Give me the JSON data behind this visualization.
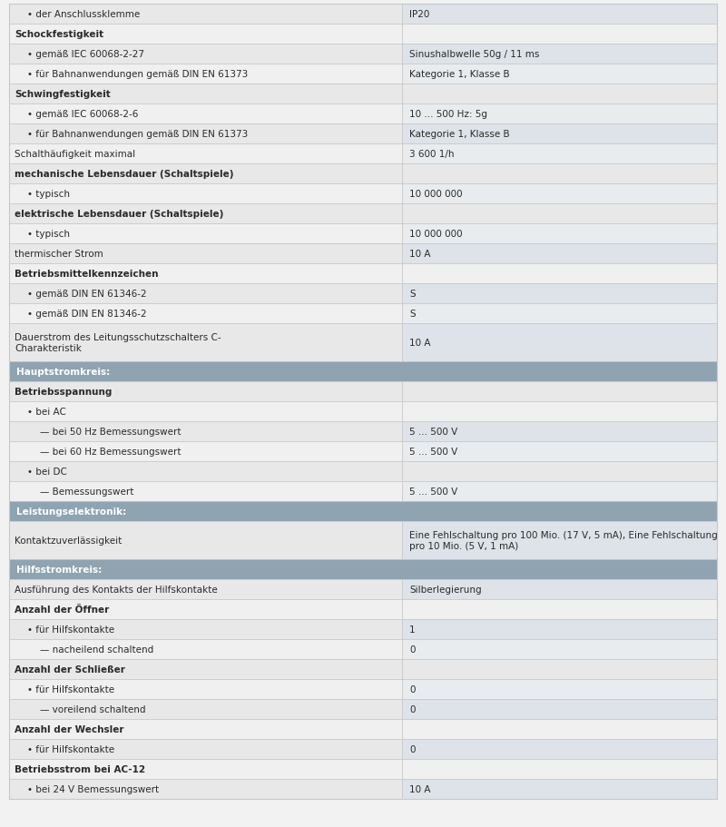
{
  "bg_color": "#f2f2f2",
  "header_color": "#8fa3b1",
  "header_text_color": "#ffffff",
  "row_bg_even": "#e8e8e8",
  "row_bg_odd": "#f0f0f0",
  "right_bg_even": "#dde3e8",
  "right_bg_odd": "#e8ecef",
  "text_color": "#2a2a2a",
  "border_color": "#c8c8c8",
  "col_split": 0.555,
  "font_size": 7.5,
  "rows": [
    {
      "type": "data",
      "left": "• der Anschlussklemme",
      "right": "IP20",
      "indent": 1
    },
    {
      "type": "section",
      "left": "Schockfestigkeit",
      "right": "",
      "indent": 0
    },
    {
      "type": "data",
      "left": "• gemäß IEC 60068-2-27",
      "right": "Sinushalbwelle 50g / 11 ms",
      "indent": 1
    },
    {
      "type": "data",
      "left": "• für Bahnanwendungen gemäß DIN EN 61373",
      "right": "Kategorie 1, Klasse B",
      "indent": 1
    },
    {
      "type": "section",
      "left": "Schwingfestigkeit",
      "right": "",
      "indent": 0
    },
    {
      "type": "data",
      "left": "• gemäß IEC 60068-2-6",
      "right": "10 ... 500 Hz: 5g",
      "indent": 1
    },
    {
      "type": "data",
      "left": "• für Bahnanwendungen gemäß DIN EN 61373",
      "right": "Kategorie 1, Klasse B",
      "indent": 1
    },
    {
      "type": "data",
      "left": "Schalthäufigkeit maximal",
      "right": "3 600 1/h",
      "indent": 0
    },
    {
      "type": "section",
      "left": "mechanische Lebensdauer (Schaltspiele)",
      "right": "",
      "indent": 0
    },
    {
      "type": "data",
      "left": "• typisch",
      "right": "10 000 000",
      "indent": 1
    },
    {
      "type": "section",
      "left": "elektrische Lebensdauer (Schaltspiele)",
      "right": "",
      "indent": 0
    },
    {
      "type": "data",
      "left": "• typisch",
      "right": "10 000 000",
      "indent": 1
    },
    {
      "type": "data",
      "left": "thermischer Strom",
      "right": "10 A",
      "indent": 0
    },
    {
      "type": "section",
      "left": "Betriebsmittelkennzeichen",
      "right": "",
      "indent": 0
    },
    {
      "type": "data",
      "left": "• gemäß DIN EN 61346-2",
      "right": "S",
      "indent": 1
    },
    {
      "type": "data",
      "left": "• gemäß DIN EN 81346-2",
      "right": "S",
      "indent": 1
    },
    {
      "type": "data2",
      "left": "Dauerstrom des Leitungsschutzschalters C-\nCharakteristik",
      "right": "10 A",
      "indent": 0
    },
    {
      "type": "header",
      "left": "Hauptstromkreis:",
      "right": "",
      "indent": 0
    },
    {
      "type": "section",
      "left": "Betriebsspannung",
      "right": "",
      "indent": 0
    },
    {
      "type": "data",
      "left": "• bei AC",
      "right": "",
      "indent": 1
    },
    {
      "type": "data",
      "left": "— bei 50 Hz Bemessungswert",
      "right": "5 ... 500 V",
      "indent": 2
    },
    {
      "type": "data",
      "left": "— bei 60 Hz Bemessungswert",
      "right": "5 ... 500 V",
      "indent": 2
    },
    {
      "type": "data",
      "left": "• bei DC",
      "right": "",
      "indent": 1
    },
    {
      "type": "data",
      "left": "— Bemessungswert",
      "right": "5 ... 500 V",
      "indent": 2
    },
    {
      "type": "header",
      "left": "Leistungselektronik:",
      "right": "",
      "indent": 0
    },
    {
      "type": "data2",
      "left": "Kontaktzuverlässigkeit",
      "right": "Eine Fehlschaltung pro 100 Mio. (17 V, 5 mA), Eine Fehlschaltung\npro 10 Mio. (5 V, 1 mA)",
      "indent": 0
    },
    {
      "type": "header",
      "left": "Hilfsstromkreis:",
      "right": "",
      "indent": 0
    },
    {
      "type": "data",
      "left": "Ausführung des Kontakts der Hilfskontakte",
      "right": "Silberlegierung",
      "indent": 0
    },
    {
      "type": "section",
      "left": "Anzahl der Öffner",
      "right": "",
      "indent": 0
    },
    {
      "type": "data",
      "left": "• für Hilfskontakte",
      "right": "1",
      "indent": 1
    },
    {
      "type": "data",
      "left": "— nacheilend schaltend",
      "right": "0",
      "indent": 2
    },
    {
      "type": "section",
      "left": "Anzahl der Schließer",
      "right": "",
      "indent": 0
    },
    {
      "type": "data",
      "left": "• für Hilfskontakte",
      "right": "0",
      "indent": 1
    },
    {
      "type": "data",
      "left": "— voreilend schaltend",
      "right": "0",
      "indent": 2
    },
    {
      "type": "section",
      "left": "Anzahl der Wechsler",
      "right": "",
      "indent": 0
    },
    {
      "type": "data",
      "left": "• für Hilfskontakte",
      "right": "0",
      "indent": 1
    },
    {
      "type": "section",
      "left": "Betriebsstrom bei AC-12",
      "right": "",
      "indent": 0
    },
    {
      "type": "data",
      "left": "• bei 24 V Bemessungswert",
      "right": "10 A",
      "indent": 1
    }
  ]
}
